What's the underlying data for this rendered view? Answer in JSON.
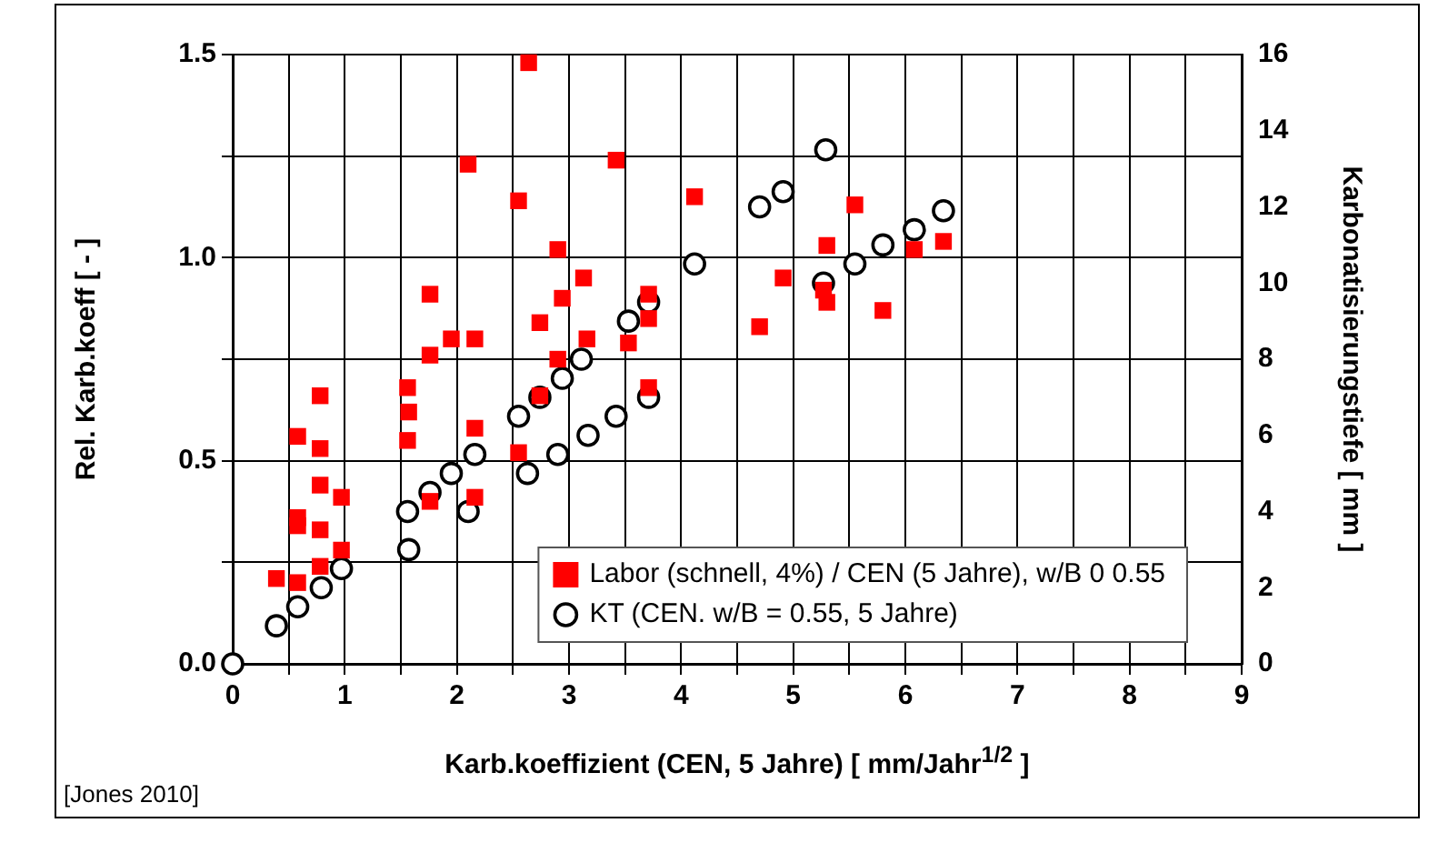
{
  "chart_data": {
    "type": "scatter",
    "xlabel": "Karb.koeffizient (CEN, 5 Jahre) [ mm/Jahr$^{1/2}$ ]",
    "ylabel": "Rel. Karb.koeff [ - ]",
    "y2label": "Karbonatisierungstiefe [ mm ]",
    "xlim": [
      0,
      9
    ],
    "xticks": [
      0,
      {
        "value": 0.5,
        "label": null
      },
      1,
      {
        "value": 1.5,
        "label": null
      },
      2,
      {
        "value": 2.5,
        "label": null
      },
      3,
      {
        "value": 3.5,
        "label": null
      },
      4,
      {
        "value": 4.5,
        "label": null
      },
      5,
      {
        "value": 5.5,
        "label": null
      },
      6,
      {
        "value": 6.5,
        "label": null
      },
      7,
      {
        "value": 7.5,
        "label": null
      },
      8,
      {
        "value": 8.5,
        "label": null
      },
      9
    ],
    "ylim": [
      0,
      1.5
    ],
    "yticks": [
      {
        "value": 0,
        "label": "0.0"
      },
      {
        "value": 0.25,
        "label": null
      },
      {
        "value": 0.5,
        "label": "0.5"
      },
      {
        "value": 0.75,
        "label": null
      },
      {
        "value": 1,
        "label": "1.0"
      },
      {
        "value": 1.25,
        "label": null
      },
      {
        "value": 1.5,
        "label": "1.5"
      }
    ],
    "y2lim": [
      0,
      16
    ],
    "y2ticks": [
      0,
      2,
      4,
      6,
      8,
      10,
      12,
      14,
      16
    ],
    "grid": true,
    "legend": "bottom right",
    "annotations": [
      "[Jones 2010]"
    ],
    "series": [
      {
        "name": "Labor (schnell, 4%) / CEN (5 Jahre), w/B 0 0.55",
        "color": "#ff0000",
        "marker": "square",
        "x": [
          0.39,
          0.58,
          0.78,
          0.97,
          0.78,
          0.58,
          0.58,
          0.97,
          0.78,
          0.78,
          0.58,
          0.78,
          1.56,
          1.57,
          1.56,
          1.76,
          1.76,
          1.95,
          2.16,
          2.1,
          2.16,
          2.16,
          1.76,
          2.55,
          2.55,
          2.64,
          2.9,
          2.94,
          2.74,
          2.9,
          2.74,
          3.13,
          3.42,
          3.16,
          3.53,
          3.71,
          3.71,
          3.71,
          4.12,
          4.7,
          4.91,
          5.3,
          5.27,
          5.3,
          5.55,
          5.8,
          6.08,
          6.34
        ],
        "values": [
          0.21,
          0.2,
          0.24,
          0.28,
          0.33,
          0.36,
          0.34,
          0.41,
          0.44,
          0.53,
          0.56,
          0.66,
          0.68,
          0.62,
          0.55,
          0.76,
          0.91,
          0.8,
          0.8,
          1.23,
          0.58,
          0.41,
          0.4,
          0.52,
          1.14,
          1.48,
          1.02,
          0.9,
          0.84,
          0.75,
          0.66,
          0.95,
          1.24,
          0.8,
          0.79,
          0.91,
          0.85,
          0.68,
          1.15,
          0.83,
          0.95,
          1.03,
          0.92,
          0.89,
          1.13,
          0.87,
          1.02,
          1.04
        ]
      },
      {
        "name": "KT (CEN. w/B = 0.55, 5 Jahre)",
        "color": "#000000",
        "marker": "circle",
        "axis": "y2",
        "x": [
          0,
          0.39,
          0.58,
          0.79,
          0.97,
          1.57,
          1.56,
          1.76,
          1.95,
          2.1,
          2.16,
          2.63,
          2.55,
          2.74,
          2.9,
          2.94,
          3.11,
          3.17,
          3.42,
          3.71,
          3.71,
          3.53,
          4.12,
          4.7,
          4.91,
          5.29,
          5.27,
          5.55,
          5.8,
          6.08,
          6.34
        ],
        "values": [
          0,
          1,
          1.5,
          2,
          2.5,
          3,
          4,
          4.5,
          5,
          4,
          5.5,
          5,
          6.5,
          7,
          5.5,
          7.5,
          8,
          6,
          6.5,
          7,
          9.5,
          9,
          10.5,
          12,
          12.4,
          13.5,
          10,
          10.5,
          11,
          11.4,
          11.9
        ]
      }
    ]
  }
}
